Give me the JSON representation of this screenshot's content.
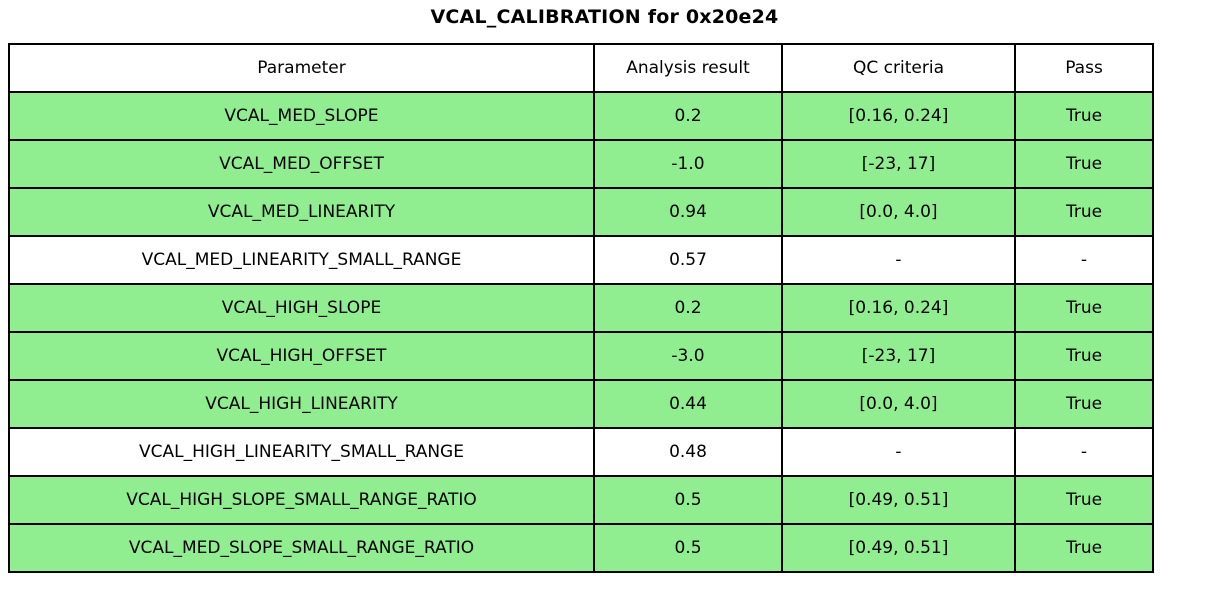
{
  "page_title": "VCAL_CALIBRATION for 0x20e24",
  "colors": {
    "pass_row_bg": "#90EE90",
    "neutral_row_bg": "#FFFFFF",
    "border": "#000000",
    "text": "#000000"
  },
  "chart_data": {
    "type": "table",
    "title": "VCAL_CALIBRATION for 0x20e24",
    "columns": [
      "Parameter",
      "Analysis result",
      "QC criteria",
      "Pass"
    ],
    "rows": [
      {
        "parameter": "VCAL_MED_SLOPE",
        "analysis_result": "0.2",
        "qc_criteria": "[0.16, 0.24]",
        "pass": "True",
        "highlighted": true
      },
      {
        "parameter": "VCAL_MED_OFFSET",
        "analysis_result": "-1.0",
        "qc_criteria": "[-23, 17]",
        "pass": "True",
        "highlighted": true
      },
      {
        "parameter": "VCAL_MED_LINEARITY",
        "analysis_result": "0.94",
        "qc_criteria": "[0.0, 4.0]",
        "pass": "True",
        "highlighted": true
      },
      {
        "parameter": "VCAL_MED_LINEARITY_SMALL_RANGE",
        "analysis_result": "0.57",
        "qc_criteria": "-",
        "pass": "-",
        "highlighted": false
      },
      {
        "parameter": "VCAL_HIGH_SLOPE",
        "analysis_result": "0.2",
        "qc_criteria": "[0.16, 0.24]",
        "pass": "True",
        "highlighted": true
      },
      {
        "parameter": "VCAL_HIGH_OFFSET",
        "analysis_result": "-3.0",
        "qc_criteria": "[-23, 17]",
        "pass": "True",
        "highlighted": true
      },
      {
        "parameter": "VCAL_HIGH_LINEARITY",
        "analysis_result": "0.44",
        "qc_criteria": "[0.0, 4.0]",
        "pass": "True",
        "highlighted": true
      },
      {
        "parameter": "VCAL_HIGH_LINEARITY_SMALL_RANGE",
        "analysis_result": "0.48",
        "qc_criteria": "-",
        "pass": "-",
        "highlighted": false
      },
      {
        "parameter": "VCAL_HIGH_SLOPE_SMALL_RANGE_RATIO",
        "analysis_result": "0.5",
        "qc_criteria": "[0.49, 0.51]",
        "pass": "True",
        "highlighted": true
      },
      {
        "parameter": "VCAL_MED_SLOPE_SMALL_RANGE_RATIO",
        "analysis_result": "0.5",
        "qc_criteria": "[0.49, 0.51]",
        "pass": "True",
        "highlighted": true
      }
    ]
  }
}
